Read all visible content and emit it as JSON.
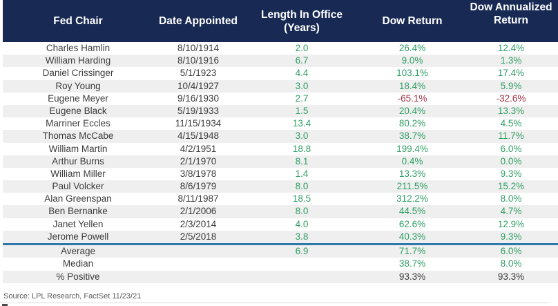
{
  "chart_data": {
    "type": "table",
    "columns": [
      "Fed Chair",
      "Date Appointed",
      "Length In Office (Years)",
      "Dow Return",
      "Dow Annualized Return"
    ],
    "rows": [
      {
        "chair": "Charles Hamlin",
        "date": "8/10/1914",
        "length": "2.0",
        "dow_return": "26.4%",
        "dow_annualized": "12.4%"
      },
      {
        "chair": "William Harding",
        "date": "8/10/1916",
        "length": "6.7",
        "dow_return": "9.0%",
        "dow_annualized": "1.3%"
      },
      {
        "chair": "Daniel Crissinger",
        "date": "5/1/1923",
        "length": "4.4",
        "dow_return": "103.1%",
        "dow_annualized": "17.4%"
      },
      {
        "chair": "Roy Young",
        "date": "10/4/1927",
        "length": "3.0",
        "dow_return": "18.4%",
        "dow_annualized": "5.9%"
      },
      {
        "chair": "Eugene Meyer",
        "date": "9/16/1930",
        "length": "2.7",
        "dow_return": "-65.1%",
        "dow_annualized": "-32.6%"
      },
      {
        "chair": "Eugene Black",
        "date": "5/19/1933",
        "length": "1.5",
        "dow_return": "20.4%",
        "dow_annualized": "13.3%"
      },
      {
        "chair": "Marriner Eccles",
        "date": "11/15/1934",
        "length": "13.4",
        "dow_return": "80.2%",
        "dow_annualized": "4.5%"
      },
      {
        "chair": "Thomas McCabe",
        "date": "4/15/1948",
        "length": "3.0",
        "dow_return": "38.7%",
        "dow_annualized": "11.7%"
      },
      {
        "chair": "William Martin",
        "date": "4/2/1951",
        "length": "18.8",
        "dow_return": "199.4%",
        "dow_annualized": "6.0%"
      },
      {
        "chair": "Arthur Burns",
        "date": "2/1/1970",
        "length": "8.1",
        "dow_return": "0.4%",
        "dow_annualized": "0.0%"
      },
      {
        "chair": "William Miller",
        "date": "3/8/1978",
        "length": "1.4",
        "dow_return": "13.3%",
        "dow_annualized": "9.3%"
      },
      {
        "chair": "Paul Volcker",
        "date": "8/6/1979",
        "length": "8.0",
        "dow_return": "211.5%",
        "dow_annualized": "15.2%"
      },
      {
        "chair": "Alan Greenspan",
        "date": "8/11/1987",
        "length": "18.5",
        "dow_return": "312.2%",
        "dow_annualized": "8.0%"
      },
      {
        "chair": "Ben Bernanke",
        "date": "2/1/2006",
        "length": "8.0",
        "dow_return": "44.5%",
        "dow_annualized": "4.7%"
      },
      {
        "chair": "Janet Yellen",
        "date": "2/3/2014",
        "length": "4.0",
        "dow_return": "62.6%",
        "dow_annualized": "12.9%"
      },
      {
        "chair": "Jerome Powell",
        "date": "2/5/2018",
        "length": "3.8",
        "dow_return": "40.3%",
        "dow_annualized": "9.3%"
      }
    ],
    "summary_rows": [
      {
        "label": "Average",
        "length": "6.9",
        "dow_return": "71.7%",
        "dow_annualized": "6.0%",
        "value_color": "green"
      },
      {
        "label": "Median",
        "length": "",
        "dow_return": "38.7%",
        "dow_annualized": "8.0%",
        "value_color": "green"
      },
      {
        "label": "% Positive",
        "length": "",
        "dow_return": "93.3%",
        "dow_annualized": "93.3%",
        "value_color": "black"
      }
    ],
    "legend_position": "none",
    "grid": false
  },
  "source_note": "Source: LPL Research, FactSet 11/23/21",
  "colors": {
    "header_background": "#182a54",
    "header_text": "#ffffff",
    "positive_value": "#2f9e64",
    "negative_value": "#a53246",
    "body_text": "#3c3c3c",
    "alt_row_background": "#efefef",
    "divider_blue": "#2e78ab"
  }
}
